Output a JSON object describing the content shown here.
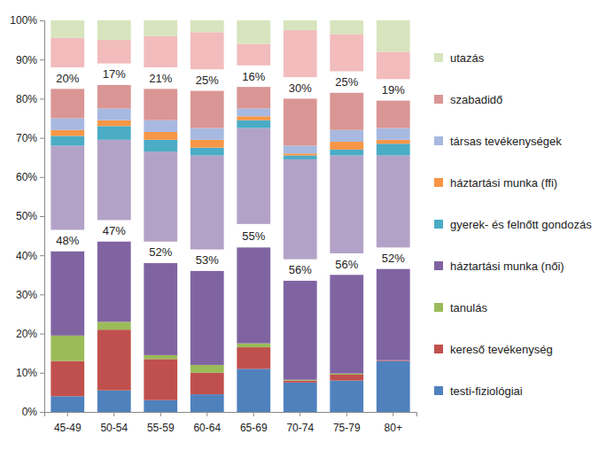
{
  "chart_data": {
    "type": "bar",
    "stacked": true,
    "grid": false,
    "legend": "right",
    "categories": [
      "45-49",
      "50-54",
      "55-59",
      "60-64",
      "65-69",
      "70-74",
      "75-79",
      "80+"
    ],
    "ylim": [
      0,
      100
    ],
    "yticks": [
      {
        "value": 0,
        "label": "0%"
      },
      {
        "value": 10,
        "label": "10%"
      },
      {
        "value": 20,
        "label": "20%"
      },
      {
        "value": 30,
        "label": "30%"
      },
      {
        "value": 40,
        "label": "40%"
      },
      {
        "value": 50,
        "label": "50%"
      },
      {
        "value": 60,
        "label": "60%"
      },
      {
        "value": 70,
        "label": "70%"
      },
      {
        "value": 80,
        "label": "80%"
      },
      {
        "value": 90,
        "label": "90%"
      },
      {
        "value": 100,
        "label": "100%"
      }
    ],
    "series": [
      {
        "name": "testi-fiziológiai",
        "color": "#4f81bd",
        "values": [
          4,
          5.5,
          3,
          4.5,
          11,
          7.5,
          8,
          13
        ]
      },
      {
        "name": "kereső tevékenység",
        "color": "#c0504d",
        "values": [
          9,
          15.5,
          10.5,
          5.5,
          5.5,
          0.5,
          1.5,
          0.2
        ]
      },
      {
        "name": "tanulás",
        "color": "#9bbb59",
        "values": [
          6.5,
          2,
          1,
          2,
          1,
          0.2,
          0.3,
          0
        ]
      },
      {
        "name": "háztartási munka (női)",
        "color": "#8064a2",
        "values": [
          21.5,
          20.5,
          23.5,
          24,
          24.5,
          25.3,
          25.2,
          23.3
        ]
      },
      {
        "color": "none",
        "values": [
          5.5,
          5.5,
          5.5,
          5.5,
          6,
          5.5,
          5.5,
          5.5
        ],
        "annotations": [
          "48%",
          "47%",
          "52%",
          "53%",
          "55%",
          "56%",
          "56%",
          "52%"
        ]
      },
      {
        "color": "#b3a2c7",
        "values": [
          21.5,
          20.5,
          23,
          24,
          24.5,
          25.5,
          25,
          23.5
        ]
      },
      {
        "name": "gyerek- és felnőtt gondozás",
        "color": "#4bacc6",
        "values": [
          2.5,
          3.5,
          3,
          2,
          2,
          1,
          1.5,
          3
        ]
      },
      {
        "name": "háztartási munka (ffi)",
        "color": "#f79646",
        "values": [
          1.5,
          1.5,
          2,
          2,
          1,
          0.5,
          2,
          1
        ]
      },
      {
        "name": "társas tevékenységek",
        "color": "#a7b9e0",
        "values": [
          3,
          3,
          3,
          3,
          2,
          2,
          3,
          3
        ]
      },
      {
        "name": "szabadidő",
        "color": "#d99694",
        "values": [
          7.5,
          6,
          8,
          9.5,
          5.5,
          12,
          9.5,
          7
        ]
      },
      {
        "color": "none",
        "values": [
          5.5,
          5.5,
          5.5,
          5.5,
          5.5,
          5.5,
          5.5,
          5.5
        ],
        "annotations": [
          "20%",
          "17%",
          "21%",
          "25%",
          "16%",
          "30%",
          "25%",
          "19%"
        ]
      },
      {
        "color": "#f2bcbc",
        "values": [
          7.5,
          6,
          8,
          9.5,
          5.5,
          12,
          9.5,
          7
        ]
      },
      {
        "name": "utazás",
        "color": "#d7e4bd",
        "values": [
          4.5,
          5,
          4,
          3,
          6,
          2.5,
          3.5,
          8
        ]
      }
    ]
  }
}
